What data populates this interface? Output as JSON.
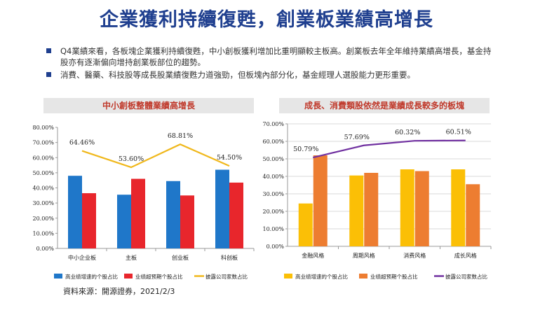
{
  "slide_title": "企業獲利持續復甦，創業板業績高增長",
  "bullets": [
    "Q4業績來看，各板塊企業獲利持續復甦，中小創板獲利增加比重明顯較主板高。創業板去年全年維持業績高增長，基金持股亦有逐漸偏向增持創業板部位的趨勢。",
    "消費、醫藥、科技股等成長股業績復甦力道強勁，但板塊內部分化，基金經理人選股能力更形重要。"
  ],
  "source": "資料來源：開源證券，2021/2/3",
  "colors": {
    "blue": "#1f77c9",
    "red": "#e8262c",
    "yellow_line": "#f0b81c",
    "gold": "#fbbf06",
    "orange": "#ed7d31",
    "purple": "#7030a0"
  },
  "chart_data": [
    {
      "type": "bar",
      "title": "中小創板整體業績高增長",
      "categories": [
        "中小企业板",
        "主板",
        "创业板",
        "科创板"
      ],
      "yticks": [
        "0.00%",
        "10.00%",
        "20.00%",
        "30.00%",
        "40.00%",
        "50.00%",
        "60.00%",
        "70.00%",
        "80.00%"
      ],
      "ylim": [
        0,
        80
      ],
      "series": [
        {
          "name": "高业绩增速的个股占比",
          "kind": "bar",
          "color": "#1f77c9",
          "values": [
            48,
            35.5,
            44.5,
            52
          ]
        },
        {
          "name": "业绩超预期个股占比",
          "kind": "bar",
          "color": "#e8262c",
          "values": [
            36.5,
            46,
            35,
            43.5
          ]
        },
        {
          "name": "披露公司家数占比",
          "kind": "line",
          "color": "#f0b81c",
          "values": [
            64.46,
            53.6,
            68.81,
            54.5
          ],
          "labels": [
            "64.46%",
            "53.60%",
            "68.81%",
            "54.50%"
          ]
        }
      ]
    },
    {
      "type": "bar",
      "title": "成長、消費類股依然是業績成長較多的板塊",
      "categories": [
        "金融风格",
        "周期风格",
        "消费风格",
        "成长风格"
      ],
      "yticks": [
        "0.00%",
        "10.00%",
        "20.00%",
        "30.00%",
        "40.00%",
        "50.00%",
        "60.00%",
        "70.00%"
      ],
      "ylim": [
        0,
        70
      ],
      "series": [
        {
          "name": "高业绩增速的个股占比",
          "kind": "bar",
          "color": "#fbbf06",
          "values": [
            24.5,
            40.5,
            44,
            44
          ]
        },
        {
          "name": "业绩超预期个股占比",
          "kind": "bar",
          "color": "#ed7d31",
          "values": [
            52,
            42,
            43,
            35.5
          ]
        },
        {
          "name": "披露公司家数占比",
          "kind": "line",
          "color": "#7030a0",
          "values": [
            50.79,
            57.69,
            60.32,
            60.51
          ],
          "labels": [
            "50.79%",
            "57.69%",
            "60.32%",
            "60.51%"
          ]
        }
      ]
    }
  ]
}
